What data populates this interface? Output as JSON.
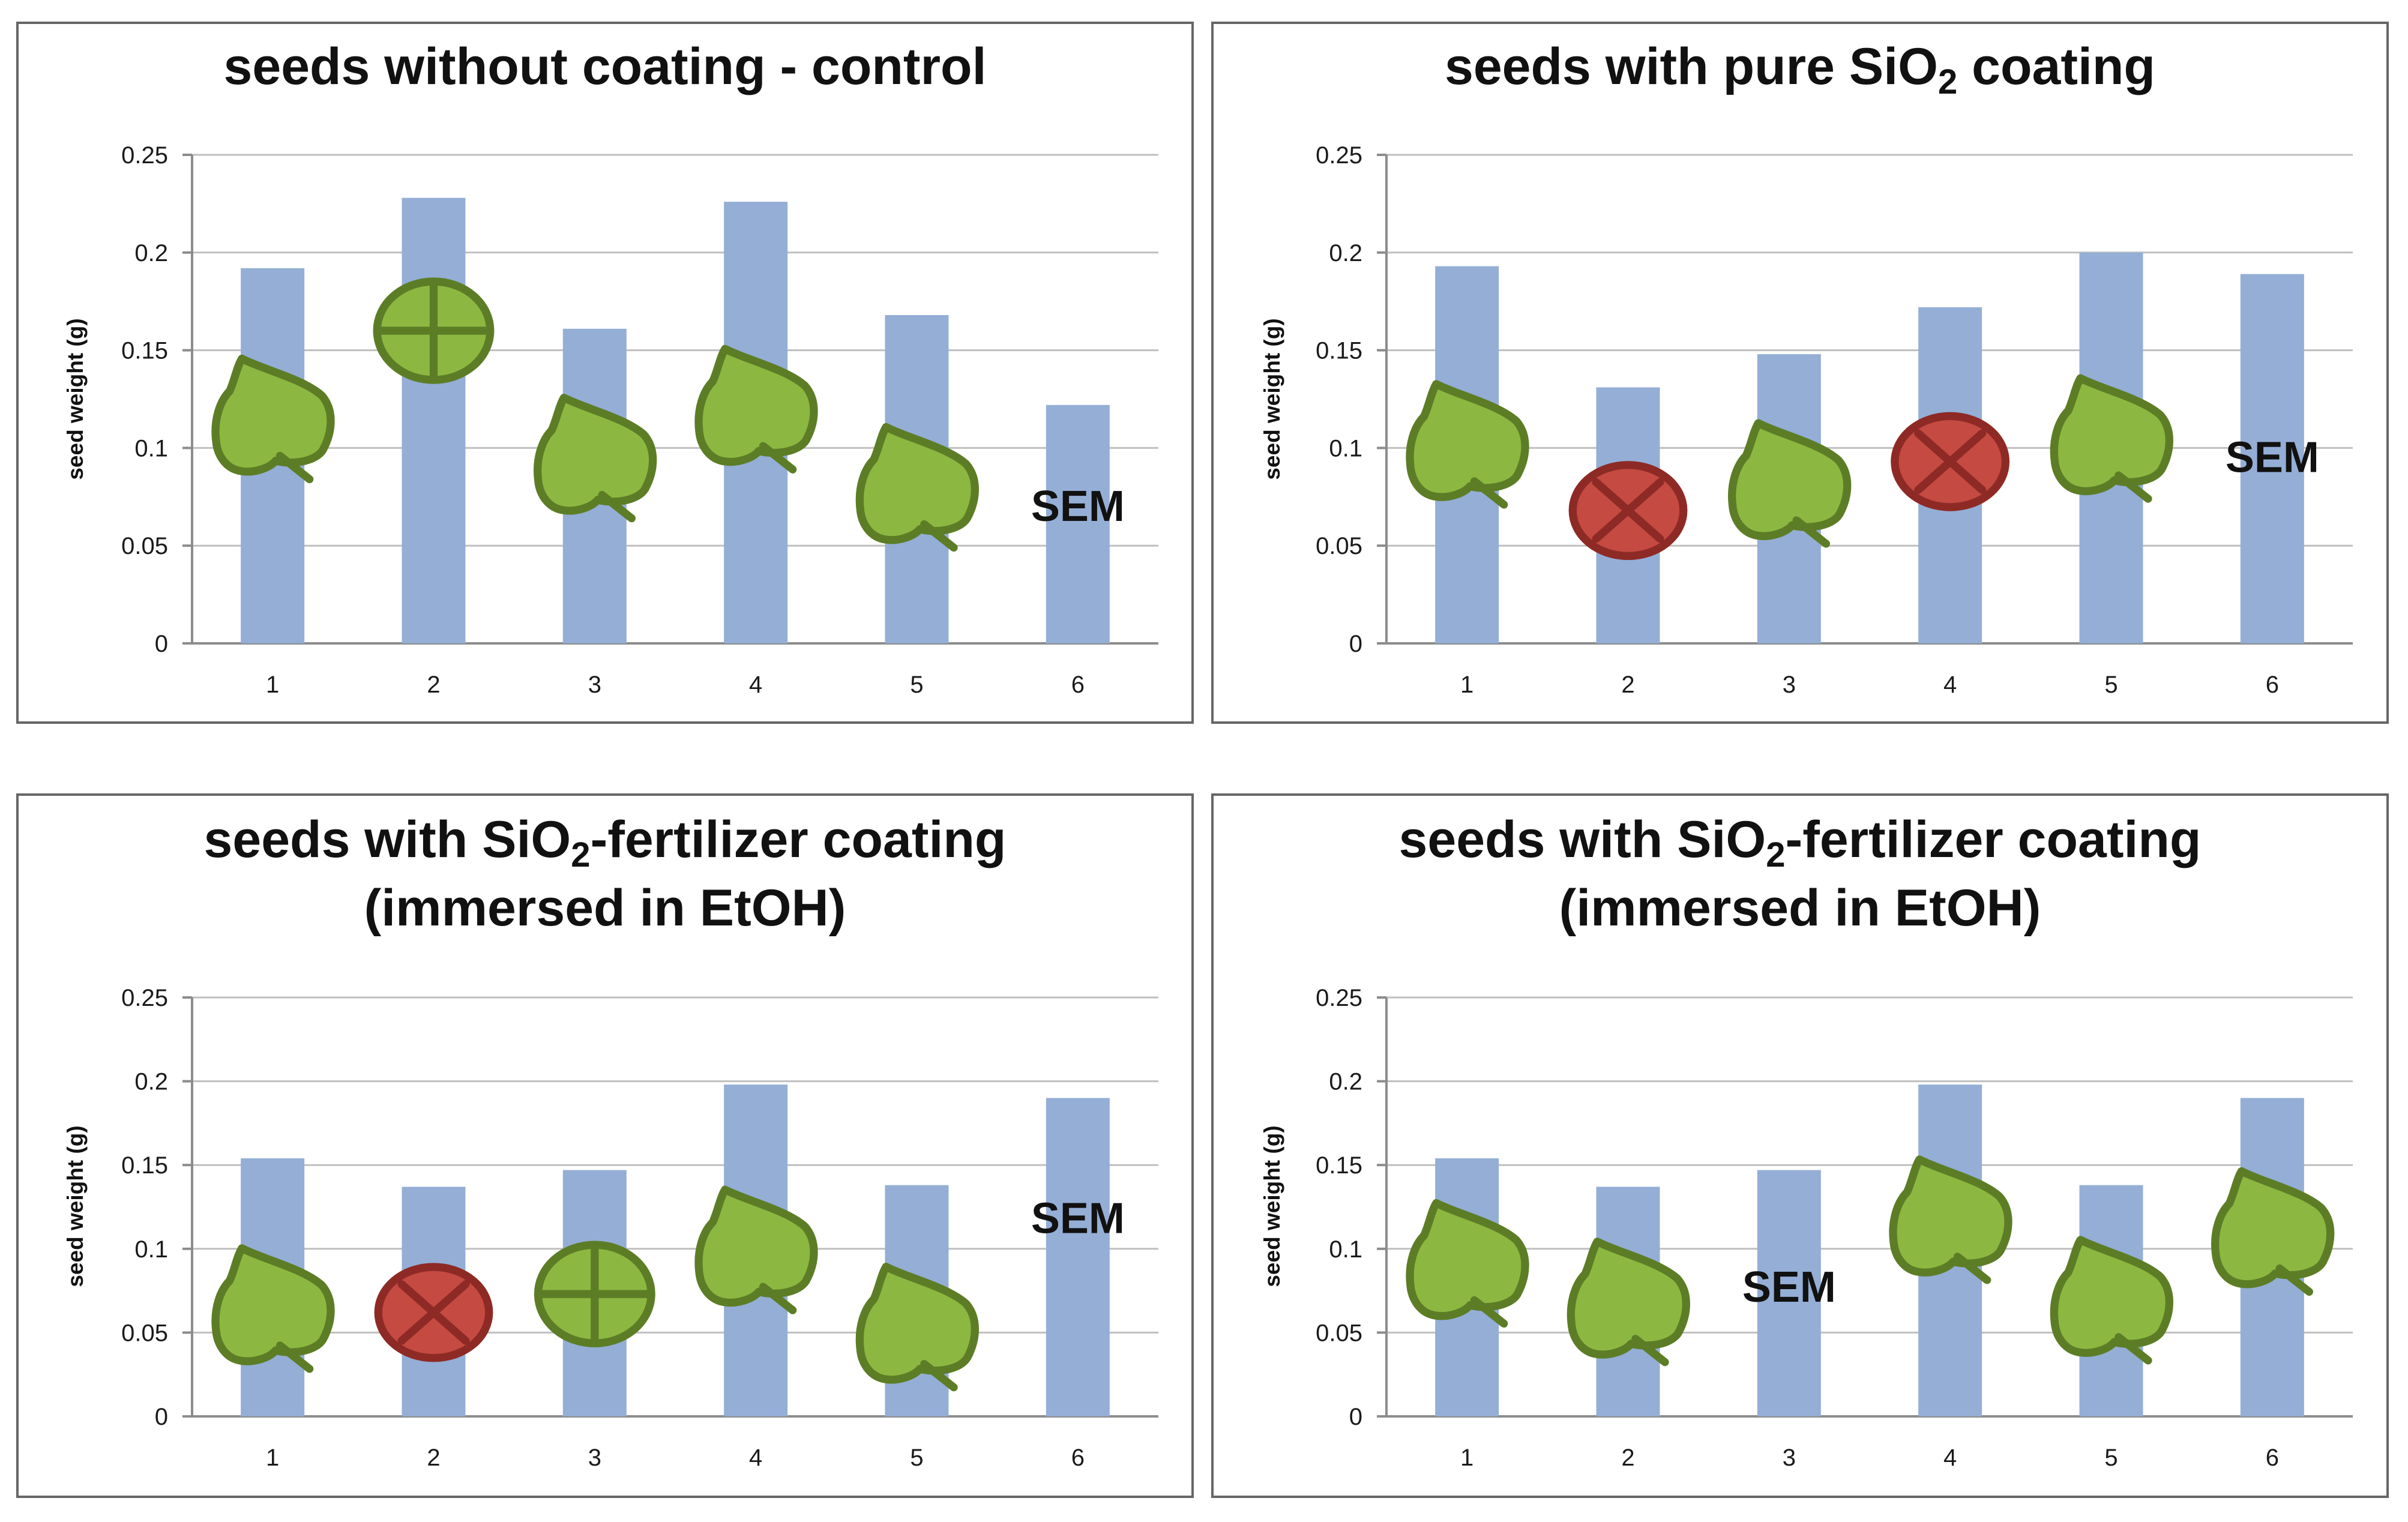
{
  "figure": {
    "colors": {
      "bar": "#94aed6",
      "grid": "#bfbfbf",
      "leaf_fill": "#8cb842",
      "leaf_stroke": "#5c7d26",
      "cross_fill": "#c44a42",
      "cross_stroke": "#8e2a25"
    }
  },
  "chart_data": [
    {
      "type": "bar",
      "title": "seeds without coating - control",
      "title_lines": [
        [
          {
            "t": "seeds without coating - control",
            "s": "n"
          }
        ]
      ],
      "ylabel": "seed weight (g)",
      "xlabel": "",
      "ylim": [
        0,
        0.25
      ],
      "yticks": [
        0,
        0.05,
        0.1,
        0.15,
        0.2,
        0.25
      ],
      "ytick_labels": [
        "0",
        "0.05",
        "0.1",
        "0.15",
        "0.2",
        "0.25"
      ],
      "categories": [
        "1",
        "2",
        "3",
        "4",
        "5",
        "6"
      ],
      "values": [
        0.192,
        0.228,
        0.161,
        0.226,
        0.168,
        0.122
      ],
      "sem_label": "SEM",
      "sem_position": "above bar 6",
      "sem_slot": 5,
      "sem_value": 0.07,
      "markers": [
        {
          "category": "1",
          "symbol": "leaf",
          "icon": "leaf-icon",
          "value": 0.118
        },
        {
          "category": "2",
          "symbol": "plus-circle",
          "icon": "plus-circle-icon",
          "value": 0.16
        },
        {
          "category": "3",
          "symbol": "leaf",
          "icon": "leaf-icon",
          "value": 0.098
        },
        {
          "category": "4",
          "symbol": "leaf",
          "icon": "leaf-icon",
          "value": 0.123
        },
        {
          "category": "5",
          "symbol": "leaf",
          "icon": "leaf-icon",
          "value": 0.083
        }
      ]
    },
    {
      "type": "bar",
      "title": "seeds with pure SiO2 coating",
      "title_lines": [
        [
          {
            "t": "seeds with pure SiO",
            "s": "n"
          },
          {
            "t": "2",
            "s": "sub"
          },
          {
            "t": " coating",
            "s": "n"
          }
        ]
      ],
      "ylabel": "seed weight (g)",
      "xlabel": "",
      "ylim": [
        0,
        0.25
      ],
      "yticks": [
        0,
        0.05,
        0.1,
        0.15,
        0.2,
        0.25
      ],
      "ytick_labels": [
        "0",
        "0.05",
        "0.1",
        "0.15",
        "0.2",
        "0.25"
      ],
      "categories": [
        "1",
        "2",
        "3",
        "4",
        "5",
        "6"
      ],
      "values": [
        0.193,
        0.131,
        0.148,
        0.172,
        0.2,
        0.189
      ],
      "sem_label": "SEM",
      "sem_position": "above bar 6",
      "sem_slot": 5,
      "sem_value": 0.095,
      "markers": [
        {
          "category": "1",
          "symbol": "leaf",
          "icon": "leaf-icon",
          "value": 0.105
        },
        {
          "category": "2",
          "symbol": "cross-circle",
          "icon": "cross-circle-icon",
          "value": 0.068
        },
        {
          "category": "3",
          "symbol": "leaf",
          "icon": "leaf-icon",
          "value": 0.085
        },
        {
          "category": "4",
          "symbol": "cross-circle",
          "icon": "cross-circle-icon",
          "value": 0.093
        },
        {
          "category": "5",
          "symbol": "leaf",
          "icon": "leaf-icon",
          "value": 0.108
        }
      ]
    },
    {
      "type": "bar",
      "title": "seeds with SiO2-fertilizer coating (immersed in EtOH)",
      "title_lines": [
        [
          {
            "t": "seeds with SiO",
            "s": "n"
          },
          {
            "t": "2",
            "s": "sub"
          },
          {
            "t": "-fertilizer coating",
            "s": "n"
          }
        ],
        [
          {
            "t": "(immersed in EtOH)",
            "s": "n"
          }
        ]
      ],
      "ylabel": "seed weight (g)",
      "xlabel": "",
      "ylim": [
        0,
        0.25
      ],
      "yticks": [
        0,
        0.05,
        0.1,
        0.15,
        0.2,
        0.25
      ],
      "ytick_labels": [
        "0",
        "0.05",
        "0.1",
        "0.15",
        "0.2",
        "0.25"
      ],
      "categories": [
        "1",
        "2",
        "3",
        "4",
        "5",
        "6"
      ],
      "values": [
        0.154,
        0.137,
        0.147,
        0.198,
        0.138,
        0.19
      ],
      "sem_label": "SEM",
      "sem_position": "above bar 6",
      "sem_slot": 5,
      "sem_value": 0.118,
      "markers": [
        {
          "category": "1",
          "symbol": "leaf",
          "icon": "leaf-icon",
          "value": 0.068
        },
        {
          "category": "2",
          "symbol": "cross-circle",
          "icon": "cross-circle-icon",
          "value": 0.062
        },
        {
          "category": "3",
          "symbol": "plus-circle",
          "icon": "plus-circle-icon",
          "value": 0.073
        },
        {
          "category": "4",
          "symbol": "leaf",
          "icon": "leaf-icon",
          "value": 0.103
        },
        {
          "category": "5",
          "symbol": "leaf",
          "icon": "leaf-icon",
          "value": 0.057
        }
      ]
    },
    {
      "type": "bar",
      "title": "seeds with SiO2-fertilizer coating (immersed in EtOH)",
      "title_lines": [
        [
          {
            "t": "seeds with SiO",
            "s": "n"
          },
          {
            "t": "2",
            "s": "sub"
          },
          {
            "t": "-fertilizer coating",
            "s": "n"
          }
        ],
        [
          {
            "t": "(immersed in EtOH)",
            "s": "n"
          }
        ]
      ],
      "ylabel": "seed weight (g)",
      "xlabel": "",
      "ylim": [
        0,
        0.25
      ],
      "yticks": [
        0,
        0.05,
        0.1,
        0.15,
        0.2,
        0.25
      ],
      "ytick_labels": [
        "0",
        "0.05",
        "0.1",
        "0.15",
        "0.2",
        "0.25"
      ],
      "categories": [
        "1",
        "2",
        "3",
        "4",
        "5",
        "6"
      ],
      "values": [
        0.154,
        0.137,
        0.147,
        0.198,
        0.138,
        0.19
      ],
      "sem_label": "SEM",
      "sem_position": "over bar 3",
      "sem_slot": 2,
      "sem_value": 0.077,
      "markers": [
        {
          "category": "1",
          "symbol": "leaf",
          "icon": "leaf-icon",
          "value": 0.095
        },
        {
          "category": "2",
          "symbol": "leaf",
          "icon": "leaf-icon",
          "value": 0.072
        },
        {
          "category": "4",
          "symbol": "leaf",
          "icon": "leaf-icon",
          "value": 0.121
        },
        {
          "category": "5",
          "symbol": "leaf",
          "icon": "leaf-icon",
          "value": 0.073
        },
        {
          "category": "6",
          "symbol": "leaf",
          "icon": "leaf-icon",
          "value": 0.114
        }
      ]
    }
  ]
}
